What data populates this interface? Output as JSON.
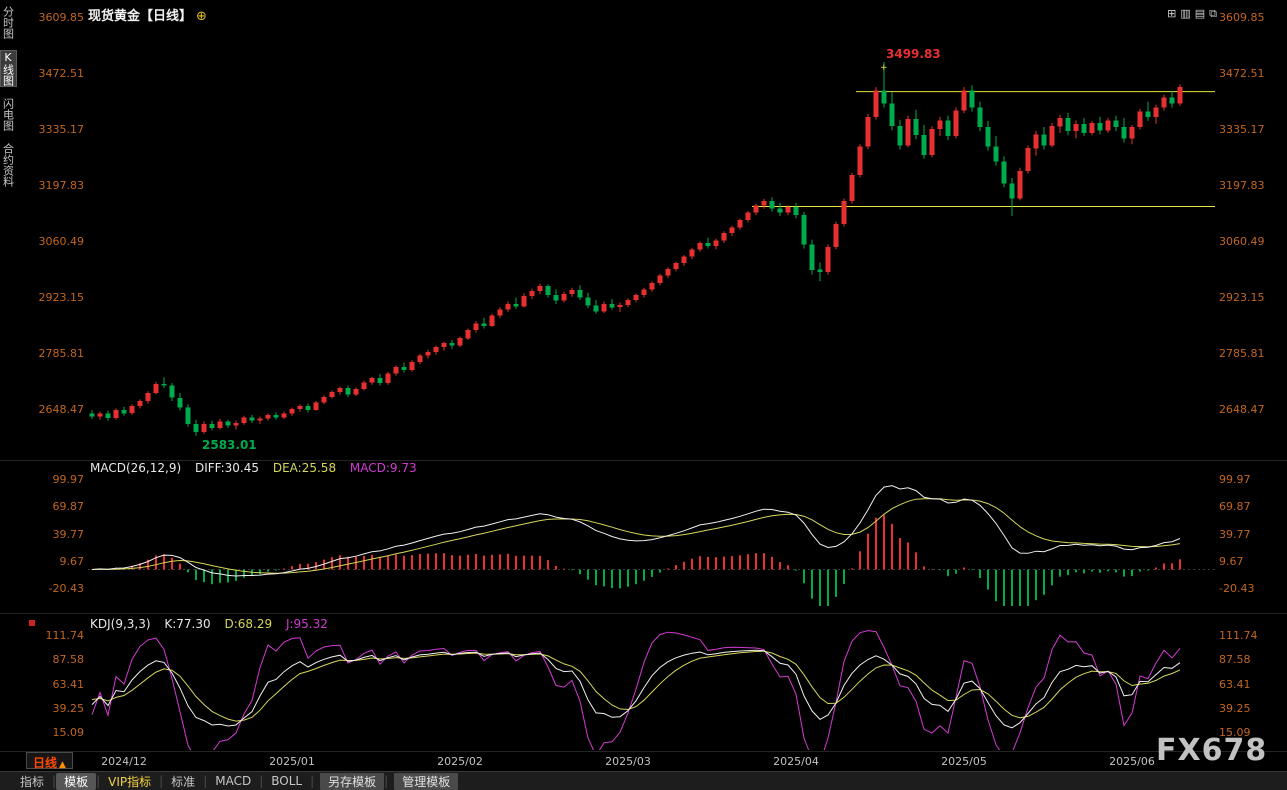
{
  "window": {
    "title_symbol": "现货黄金",
    "title_period": "【日线】",
    "title_icon": "⊕"
  },
  "header": {
    "icons": [
      {
        "name": "multi-window-layout-icon",
        "glyph": "⊞"
      },
      {
        "name": "column-chart-icon",
        "glyph": "▥"
      },
      {
        "name": "row-chart-icon",
        "glyph": "▤"
      },
      {
        "name": "new-window-icon",
        "glyph": "⧉"
      }
    ]
  },
  "sidebar": {
    "items": [
      {
        "label": "分时图",
        "active": false
      },
      {
        "label": "K线图",
        "active": true
      },
      {
        "label": "闪电图",
        "active": false
      },
      {
        "label": "合约资料",
        "active": false
      }
    ]
  },
  "macd_panel": {
    "title": "MACD(26,12,9)",
    "diff": "DIFF:30.45",
    "dea": "DEA:25.58",
    "macd": "MACD:9.73"
  },
  "kdj_panel": {
    "title": "KDJ(9,3,3)",
    "k": "K:77.30",
    "d": "D:68.29",
    "j": "J:95.32"
  },
  "bottom_bar": {
    "period": "日线",
    "period_arrow": "▲",
    "tabs": [
      {
        "label": "指标",
        "style": "plain"
      },
      {
        "label": "模板",
        "style": "active"
      },
      {
        "label": "VIP指标",
        "style": "vip"
      },
      {
        "label": "标准",
        "style": "plain"
      },
      {
        "label": "MACD",
        "style": "plain"
      },
      {
        "label": "BOLL",
        "style": "plain"
      },
      {
        "label": "另存模板",
        "style": "button"
      },
      {
        "label": "管理模板",
        "style": "button"
      }
    ]
  },
  "watermark": "FX678",
  "colors": {
    "up": "#e83030",
    "down": "#00ab4e",
    "axis_label": "#c2661f",
    "trend_line": "#e6e63c",
    "diff_line": "#f0f0f0",
    "dea_line": "#d6d65a",
    "k_line": "#f0f0f0",
    "d_line": "#d6d65a",
    "j_line": "#d23bd2",
    "background": "#000000"
  },
  "chart_data": {
    "type": "candlestick",
    "title": "现货黄金 日线 (Spot Gold Daily)",
    "y_axis_main": [
      "3609.85",
      "3472.51",
      "3335.17",
      "3197.83",
      "3060.49",
      "2923.15",
      "2785.81",
      "2648.47"
    ],
    "x_ticks": [
      {
        "i": 4,
        "label": "2024/12"
      },
      {
        "i": 25,
        "label": "2025/01"
      },
      {
        "i": 46,
        "label": "2025/02"
      },
      {
        "i": 67,
        "label": "2025/03"
      },
      {
        "i": 88,
        "label": "2025/04"
      },
      {
        "i": 109,
        "label": "2025/05"
      },
      {
        "i": 130,
        "label": "2025/06"
      }
    ],
    "resistance_line": {
      "price": 3427,
      "start_index": 96
    },
    "support_line": {
      "price": 3145,
      "start_index": 83
    },
    "high_annotation": {
      "index": 99,
      "price": 3499.83,
      "label": "3499.83",
      "marker_glyph": "+"
    },
    "low_annotation": {
      "index": 13,
      "price": 2583.01,
      "label": "2583.01"
    },
    "indicators": [
      {
        "type": "MACD",
        "params": [
          26,
          12,
          9
        ],
        "current": {
          "DIFF": 30.45,
          "DEA": 25.58,
          "MACD": 9.73
        },
        "y_ticks": [
          99.97,
          69.87,
          39.77,
          9.67,
          -20.43
        ]
      },
      {
        "type": "KDJ",
        "params": [
          9,
          3,
          3
        ],
        "current": {
          "K": 77.3,
          "D": 68.29,
          "J": 95.32
        },
        "y_ticks": [
          111.74,
          87.58,
          63.41,
          39.25,
          15.09
        ]
      }
    ],
    "candles": [
      [
        2638,
        2646,
        2624,
        2630
      ],
      [
        2630,
        2642,
        2622,
        2638
      ],
      [
        2638,
        2644,
        2620,
        2626
      ],
      [
        2626,
        2650,
        2622,
        2646
      ],
      [
        2646,
        2654,
        2632,
        2638
      ],
      [
        2638,
        2660,
        2634,
        2656
      ],
      [
        2656,
        2672,
        2650,
        2668
      ],
      [
        2668,
        2692,
        2662,
        2688
      ],
      [
        2688,
        2715,
        2684,
        2710
      ],
      [
        2710,
        2726,
        2700,
        2706
      ],
      [
        2706,
        2712,
        2668,
        2676
      ],
      [
        2676,
        2688,
        2645,
        2652
      ],
      [
        2652,
        2660,
        2605,
        2612
      ],
      [
        2612,
        2622,
        2583,
        2592
      ],
      [
        2592,
        2618,
        2588,
        2612
      ],
      [
        2612,
        2620,
        2596,
        2602
      ],
      [
        2602,
        2624,
        2598,
        2618
      ],
      [
        2618,
        2622,
        2602,
        2608
      ],
      [
        2608,
        2620,
        2598,
        2614
      ],
      [
        2614,
        2632,
        2610,
        2628
      ],
      [
        2628,
        2634,
        2614,
        2620
      ],
      [
        2620,
        2630,
        2612,
        2625
      ],
      [
        2625,
        2638,
        2620,
        2634
      ],
      [
        2634,
        2640,
        2622,
        2628
      ],
      [
        2628,
        2642,
        2624,
        2638
      ],
      [
        2638,
        2652,
        2632,
        2648
      ],
      [
        2648,
        2660,
        2642,
        2656
      ],
      [
        2656,
        2662,
        2640,
        2646
      ],
      [
        2646,
        2668,
        2644,
        2664
      ],
      [
        2664,
        2682,
        2660,
        2678
      ],
      [
        2678,
        2694,
        2674,
        2690
      ],
      [
        2690,
        2704,
        2684,
        2700
      ],
      [
        2700,
        2706,
        2678,
        2684
      ],
      [
        2684,
        2702,
        2680,
        2698
      ],
      [
        2698,
        2718,
        2694,
        2714
      ],
      [
        2714,
        2728,
        2708,
        2724
      ],
      [
        2724,
        2734,
        2706,
        2712
      ],
      [
        2712,
        2740,
        2708,
        2736
      ],
      [
        2736,
        2756,
        2730,
        2752
      ],
      [
        2752,
        2762,
        2738,
        2744
      ],
      [
        2744,
        2768,
        2740,
        2764
      ],
      [
        2764,
        2784,
        2758,
        2780
      ],
      [
        2780,
        2794,
        2772,
        2788
      ],
      [
        2788,
        2804,
        2782,
        2800
      ],
      [
        2800,
        2814,
        2792,
        2810
      ],
      [
        2810,
        2818,
        2796,
        2804
      ],
      [
        2804,
        2826,
        2800,
        2822
      ],
      [
        2822,
        2846,
        2818,
        2842
      ],
      [
        2842,
        2864,
        2836,
        2858
      ],
      [
        2858,
        2872,
        2846,
        2852
      ],
      [
        2852,
        2882,
        2850,
        2878
      ],
      [
        2878,
        2898,
        2872,
        2892
      ],
      [
        2892,
        2912,
        2886,
        2906
      ],
      [
        2906,
        2922,
        2894,
        2900
      ],
      [
        2900,
        2932,
        2898,
        2926
      ],
      [
        2926,
        2944,
        2918,
        2938
      ],
      [
        2938,
        2956,
        2930,
        2950
      ],
      [
        2950,
        2954,
        2922,
        2928
      ],
      [
        2928,
        2942,
        2906,
        2914
      ],
      [
        2914,
        2936,
        2910,
        2930
      ],
      [
        2930,
        2946,
        2924,
        2940
      ],
      [
        2940,
        2952,
        2916,
        2922
      ],
      [
        2922,
        2934,
        2896,
        2902
      ],
      [
        2902,
        2916,
        2882,
        2888
      ],
      [
        2888,
        2912,
        2884,
        2906
      ],
      [
        2906,
        2918,
        2892,
        2898
      ],
      [
        2898,
        2910,
        2886,
        2904
      ],
      [
        2904,
        2920,
        2898,
        2916
      ],
      [
        2916,
        2932,
        2910,
        2928
      ],
      [
        2928,
        2946,
        2922,
        2942
      ],
      [
        2942,
        2962,
        2936,
        2958
      ],
      [
        2958,
        2980,
        2952,
        2976
      ],
      [
        2976,
        2996,
        2970,
        2992
      ],
      [
        2992,
        3010,
        2986,
        3006
      ],
      [
        3006,
        3026,
        3000,
        3022
      ],
      [
        3022,
        3044,
        3016,
        3040
      ],
      [
        3040,
        3060,
        3034,
        3056
      ],
      [
        3056,
        3068,
        3042,
        3048
      ],
      [
        3048,
        3066,
        3040,
        3062
      ],
      [
        3062,
        3084,
        3056,
        3080
      ],
      [
        3080,
        3098,
        3072,
        3094
      ],
      [
        3094,
        3116,
        3088,
        3112
      ],
      [
        3112,
        3134,
        3106,
        3130
      ],
      [
        3130,
        3152,
        3124,
        3148
      ],
      [
        3148,
        3164,
        3140,
        3158
      ],
      [
        3158,
        3168,
        3132,
        3140
      ],
      [
        3140,
        3154,
        3122,
        3130
      ],
      [
        3130,
        3148,
        3124,
        3144
      ],
      [
        3144,
        3154,
        3116,
        3124
      ],
      [
        3124,
        3132,
        3042,
        3052
      ],
      [
        3052,
        3064,
        2978,
        2990
      ],
      [
        2990,
        3008,
        2962,
        2984
      ],
      [
        2984,
        3052,
        2978,
        3046
      ],
      [
        3046,
        3108,
        3040,
        3102
      ],
      [
        3102,
        3165,
        3096,
        3158
      ],
      [
        3158,
        3228,
        3152,
        3222
      ],
      [
        3222,
        3298,
        3216,
        3292
      ],
      [
        3292,
        3372,
        3286,
        3365
      ],
      [
        3365,
        3438,
        3358,
        3430
      ],
      [
        3430,
        3499.83,
        3388,
        3398
      ],
      [
        3398,
        3425,
        3332,
        3342
      ],
      [
        3342,
        3358,
        3285,
        3295
      ],
      [
        3295,
        3368,
        3290,
        3360
      ],
      [
        3360,
        3382,
        3310,
        3320
      ],
      [
        3320,
        3345,
        3262,
        3272
      ],
      [
        3272,
        3342,
        3266,
        3335
      ],
      [
        3335,
        3365,
        3318,
        3356
      ],
      [
        3356,
        3368,
        3308,
        3318
      ],
      [
        3318,
        3388,
        3312,
        3380
      ],
      [
        3380,
        3438,
        3374,
        3430
      ],
      [
        3430,
        3442,
        3378,
        3388
      ],
      [
        3388,
        3402,
        3330,
        3340
      ],
      [
        3340,
        3355,
        3282,
        3292
      ],
      [
        3292,
        3318,
        3245,
        3255
      ],
      [
        3255,
        3268,
        3192,
        3202
      ],
      [
        3202,
        3215,
        3122,
        3165
      ],
      [
        3165,
        3240,
        3160,
        3232
      ],
      [
        3232,
        3295,
        3226,
        3288
      ],
      [
        3288,
        3330,
        3270,
        3322
      ],
      [
        3322,
        3340,
        3285,
        3295
      ],
      [
        3295,
        3350,
        3290,
        3342
      ],
      [
        3342,
        3370,
        3326,
        3362
      ],
      [
        3362,
        3375,
        3320,
        3330
      ],
      [
        3330,
        3356,
        3312,
        3348
      ],
      [
        3348,
        3362,
        3318,
        3326
      ],
      [
        3326,
        3355,
        3320,
        3350
      ],
      [
        3350,
        3365,
        3322,
        3332
      ],
      [
        3332,
        3362,
        3326,
        3356
      ],
      [
        3356,
        3368,
        3330,
        3340
      ],
      [
        3340,
        3362,
        3302,
        3312
      ],
      [
        3312,
        3345,
        3298,
        3340
      ],
      [
        3340,
        3385,
        3334,
        3378
      ],
      [
        3378,
        3402,
        3355,
        3365
      ],
      [
        3365,
        3395,
        3348,
        3388
      ],
      [
        3388,
        3420,
        3380,
        3412
      ],
      [
        3412,
        3428,
        3388,
        3398
      ],
      [
        3398,
        3445,
        3392,
        3438
      ]
    ]
  }
}
